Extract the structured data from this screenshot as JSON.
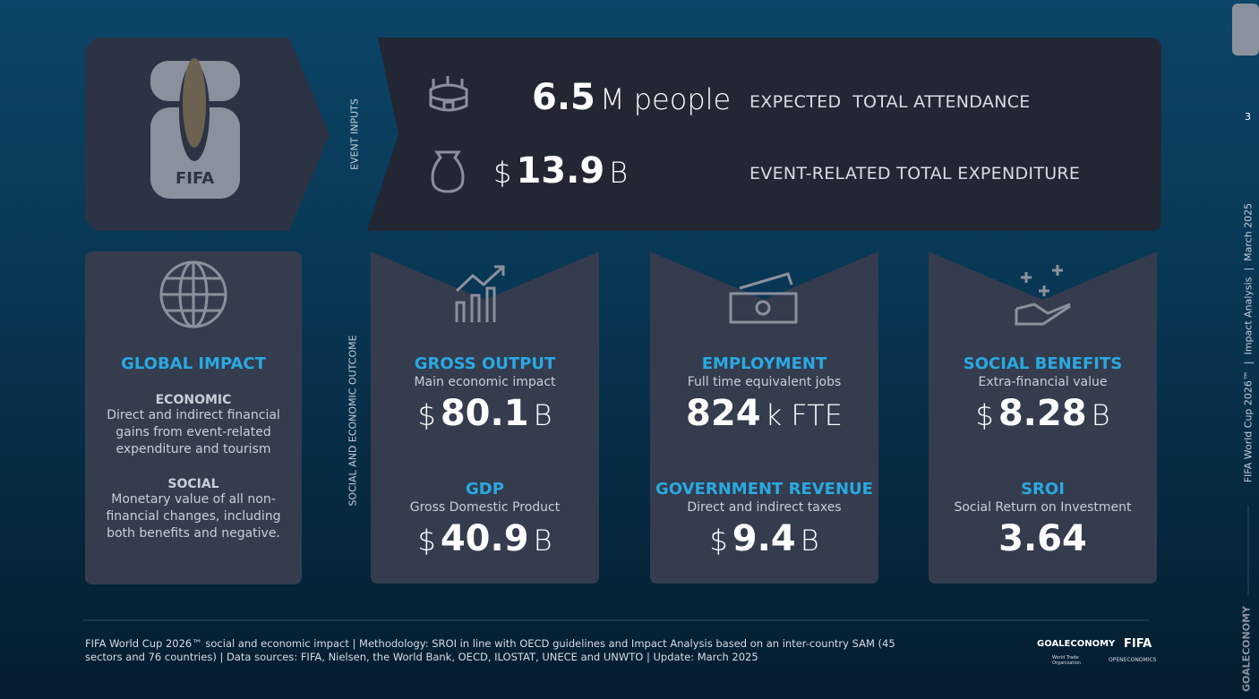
{
  "logo": {
    "text": "FIFA"
  },
  "event_inputs": {
    "label": "EVENT INPUTS",
    "attendance": {
      "value": "6.5",
      "unit": "M people",
      "label": "EXPECTED  TOTAL ATTENDANCE"
    },
    "expenditure": {
      "prefix": "$",
      "value": "13.9",
      "unit": "B",
      "label": "EVENT-RELATED TOTAL EXPENDITURE"
    }
  },
  "outcome_label": "SOCIAL AND ECONOMIC OUTCOME",
  "global_impact": {
    "title": "GLOBAL IMPACT",
    "economic_title": "ECONOMIC",
    "economic_text": "Direct and indirect financial gains from event-related expenditure and tourism",
    "social_title": "SOCIAL",
    "social_text": "Monetary value of all non-financial changes, including both benefits and negative."
  },
  "cards": [
    {
      "items": [
        {
          "title": "GROSS OUTPUT",
          "subtitle": "Main economic impact",
          "prefix": "$",
          "value": "80.1",
          "unit": "B"
        },
        {
          "title": "GDP",
          "subtitle": "Gross Domestic Product",
          "prefix": "$",
          "value": "40.9",
          "unit": "B"
        }
      ]
    },
    {
      "items": [
        {
          "title": "EMPLOYMENT",
          "subtitle": "Full time equivalent jobs",
          "value": "824",
          "unit": "k FTE"
        },
        {
          "title": "GOVERNMENT REVENUE",
          "subtitle": "Direct and indirect taxes",
          "prefix": "$",
          "value": "9.4",
          "unit": "B"
        }
      ]
    },
    {
      "items": [
        {
          "title": "SOCIAL BENEFITS",
          "subtitle": "Extra-financial value",
          "prefix": "$",
          "value": "8.28",
          "unit": "B"
        },
        {
          "title": "SROI",
          "subtitle": "Social Return on Investment",
          "value": "3.64"
        }
      ]
    }
  ],
  "footer": "FIFA World Cup 2026™ social and economic impact | Methodology: SROI in line with OECD guidelines and Impact Analysis based on an inter-country SAM (45 sectors and 76 countries) | Data sources: FIFA, Nielsen, the World Bank, OECD, ILOSTAT, UNECE and UNWTO | Update: March 2025",
  "partners": {
    "goaleconomy": "GOALECONOMY",
    "fifa": "FIFA",
    "wto": "World Trade Organization",
    "openeconomics": "OPENECONOMICS"
  },
  "sidebar": {
    "page": "3",
    "caption": "FIFA World Cup 2026™  |  Impact Analysis  |  March 2025",
    "brand": "GOALECONOMY"
  }
}
